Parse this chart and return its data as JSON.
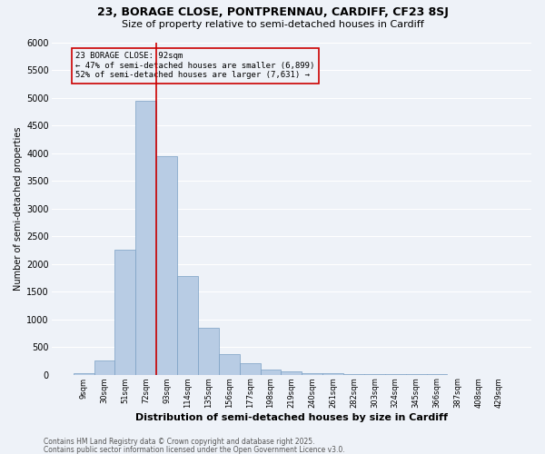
{
  "title1": "23, BORAGE CLOSE, PONTPRENNAU, CARDIFF, CF23 8SJ",
  "title2": "Size of property relative to semi-detached houses in Cardiff",
  "xlabel": "Distribution of semi-detached houses by size in Cardiff",
  "ylabel": "Number of semi-detached properties",
  "bin_labels": [
    "9sqm",
    "30sqm",
    "51sqm",
    "72sqm",
    "93sqm",
    "114sqm",
    "135sqm",
    "156sqm",
    "177sqm",
    "198sqm",
    "219sqm",
    "240sqm",
    "261sqm",
    "282sqm",
    "303sqm",
    "324sqm",
    "345sqm",
    "366sqm",
    "387sqm",
    "408sqm",
    "429sqm"
  ],
  "bar_values": [
    30,
    250,
    2250,
    4950,
    3950,
    1780,
    840,
    370,
    210,
    100,
    55,
    30,
    25,
    15,
    10,
    8,
    5,
    3,
    2,
    1,
    0
  ],
  "bar_color": "#b8cce4",
  "bar_edge_color": "#7a9fc4",
  "vline_between": [
    3,
    4
  ],
  "vline_color": "#cc0000",
  "annotation_text_line1": "23 BORAGE CLOSE: 92sqm",
  "annotation_text_line2": "← 47% of semi-detached houses are smaller (6,899)",
  "annotation_text_line3": "52% of semi-detached houses are larger (7,631) →",
  "footer1": "Contains HM Land Registry data © Crown copyright and database right 2025.",
  "footer2": "Contains public sector information licensed under the Open Government Licence v3.0.",
  "ylim": [
    0,
    6000
  ],
  "yticks": [
    0,
    500,
    1000,
    1500,
    2000,
    2500,
    3000,
    3500,
    4000,
    4500,
    5000,
    5500,
    6000
  ],
  "bg_color": "#eef2f8",
  "grid_color": "#ffffff",
  "title1_fontsize": 9,
  "title2_fontsize": 8,
  "ylabel_fontsize": 7,
  "xlabel_fontsize": 8,
  "tick_fontsize": 6,
  "ytick_fontsize": 7,
  "ann_fontsize": 6.5,
  "footer_fontsize": 5.5
}
